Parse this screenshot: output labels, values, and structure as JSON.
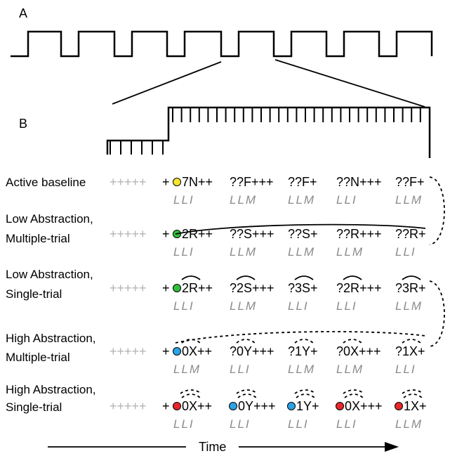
{
  "panels": {
    "a": "A",
    "b": "B"
  },
  "colors": {
    "yellow": "#f5e62d",
    "green": "#2fbf3a",
    "blue": "#2ba3e6",
    "red": "#e8262a",
    "pad": "#b4b4b4",
    "cond": "#8c8c8c"
  },
  "time_label": "Time",
  "pad_text": "+++++",
  "rows": [
    {
      "label_lines": [
        "Active baseline"
      ],
      "prefix": "+",
      "segments": [
        {
          "text": "7N++",
          "dot": "yellow"
        },
        {
          "text": "??F+++"
        },
        {
          "text": "??F+"
        },
        {
          "text": "??N+++"
        },
        {
          "text": "??F+"
        }
      ],
      "conditions": [
        "LLI",
        "LLM",
        "LLM",
        "LLI",
        "LLM"
      ]
    },
    {
      "label_lines": [
        "Low Abstraction,",
        "Multiple-trial"
      ],
      "prefix": "+",
      "segments": [
        {
          "text": "2R++",
          "dot": "green"
        },
        {
          "text": "??S+++"
        },
        {
          "text": "??S+"
        },
        {
          "text": "??R+++"
        },
        {
          "text": "??R+"
        }
      ],
      "conditions": [
        "LLI",
        "LLM",
        "LLM",
        "LLM",
        "LLI"
      ]
    },
    {
      "label_lines": [
        "Low Abstraction,",
        "Single-trial"
      ],
      "prefix": "+",
      "segments": [
        {
          "text": "2R++",
          "dot": "green"
        },
        {
          "text": "?2S+++"
        },
        {
          "text": "?3S+"
        },
        {
          "text": "?2R+++"
        },
        {
          "text": "?3R+"
        }
      ],
      "conditions": [
        "LLI",
        "LLM",
        "LLI",
        "LLI",
        "LLM"
      ]
    },
    {
      "label_lines": [
        "High Abstraction,",
        "Multiple-trial"
      ],
      "prefix": "+",
      "segments": [
        {
          "text": "0X++",
          "dot": "blue"
        },
        {
          "text": "?0Y+++"
        },
        {
          "text": "?1Y+"
        },
        {
          "text": "?0X+++"
        },
        {
          "text": "?1X+"
        }
      ],
      "conditions": [
        "LLM",
        "LLI",
        "LLM",
        "LLM",
        "LLI"
      ]
    },
    {
      "label_lines": [
        "High Abstraction,",
        "Single-trial"
      ],
      "prefix": "+",
      "segments": [
        {
          "text": "0X++",
          "dot": "red"
        },
        {
          "text": "0Y+++",
          "dot": "blue"
        },
        {
          "text": "1Y+",
          "dot": "blue"
        },
        {
          "text": "0X+++",
          "dot": "red"
        },
        {
          "text": "1X+",
          "dot": "red"
        }
      ],
      "conditions": [
        "LLI",
        "LLI",
        "LLI",
        "LLI",
        "LLM"
      ]
    }
  ]
}
